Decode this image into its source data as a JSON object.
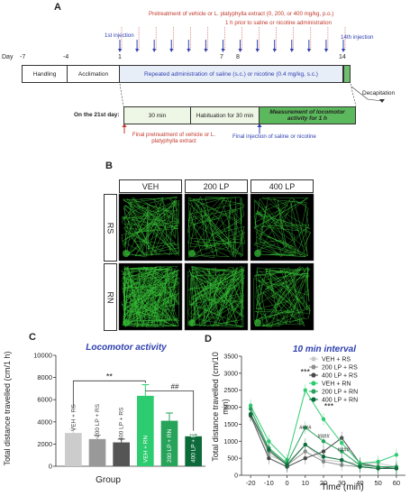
{
  "panel_a": {
    "label": "A",
    "pretreatment": "Pretreatment of vehicle or L. platyphylla extract (0, 200, or 400 mg/kg, p.o.)",
    "pretreatment_sub": "1 h prior to saline or nicotine administration",
    "first_injection": "1st injection",
    "last_injection": "14th injection",
    "day_prefix": "Day",
    "days": [
      "-7",
      "-4",
      "1",
      "7",
      "8",
      "14"
    ],
    "handling": "Handling",
    "acclimation": "Acclimation",
    "repeated": "Repeated administration of saline (s.c.) or nicotine (0.4 mg/kg, s.c.)",
    "decapitation": "Decapitation",
    "day21": "On the 21st day:",
    "box_30min": "30 min",
    "box_habituation": "Habituation  for 30 min",
    "box_measurement": "Measurement of locomotor activity for 1 h",
    "final_pretreat": "Final pretreatment of vehicle or L. platyphylla extract",
    "final_injection": "Final injection of saline or nicotine"
  },
  "panel_b": {
    "label": "B",
    "columns": [
      "VEH",
      "200 LP",
      "400 LP"
    ],
    "rows": [
      "RS",
      "RN"
    ]
  },
  "panel_c": {
    "label": "C",
    "title": "Locomotor activity",
    "ylabel": "Total distance travelled (cm/1 h)",
    "xlabel": "Group",
    "sig1": "**",
    "sig2": "##"
  },
  "panel_d": {
    "label": "D",
    "title": "10 min interval",
    "ylabel": "Total distance travelled (cm/10 min)",
    "xlabel": "Time (min)",
    "stars1": "***",
    "stars2": "***",
    "hash": "####"
  },
  "chart_data": [
    {
      "type": "bar",
      "title": "Locomotor activity",
      "xlabel": "Group",
      "ylabel": "Total distance travelled (cm/1 h)",
      "ylim": [
        0,
        10000
      ],
      "yticks": [
        0,
        2000,
        4000,
        6000,
        8000,
        10000
      ],
      "categories": [
        "VEH + RS",
        "200 LP + RS",
        "400 LP + RS",
        "VEH + RN",
        "200 LP + RN",
        "400 LP + RN"
      ],
      "values": [
        3000,
        2450,
        2150,
        6350,
        4100,
        2700
      ],
      "errors": [
        350,
        350,
        300,
        1000,
        700,
        150
      ],
      "colors": [
        "#cccccc",
        "#999999",
        "#555555",
        "#2ecc71",
        "#27a35a",
        "#0d6b3b"
      ]
    },
    {
      "type": "line",
      "title": "10 min interval",
      "xlabel": "Time (min)",
      "ylabel": "Total distance travelled (cm/10 min)",
      "xlim": [
        -25,
        65
      ],
      "ylim": [
        0,
        3500
      ],
      "xticks": [
        -20,
        -10,
        0,
        10,
        20,
        30,
        40,
        50,
        60
      ],
      "yticks": [
        0,
        500,
        1000,
        1500,
        2000,
        2500,
        3000,
        3500
      ],
      "x": [
        -20,
        -10,
        0,
        10,
        20,
        30,
        40,
        50,
        60
      ],
      "series": [
        {
          "name": "VEH + RS",
          "color": "#c8c8c8",
          "values": [
            2000,
            600,
            350,
            900,
            450,
            400,
            350,
            350,
            250
          ]
        },
        {
          "name": "200 LP + RS",
          "color": "#909090",
          "values": [
            1800,
            700,
            300,
            700,
            400,
            300,
            250,
            200,
            200
          ]
        },
        {
          "name": "400 LP + RS",
          "color": "#4a4a4a",
          "values": [
            1750,
            500,
            250,
            500,
            700,
            1100,
            350,
            250,
            200
          ]
        },
        {
          "name": "VEH + RN",
          "color": "#2ecc71",
          "values": [
            2050,
            1000,
            450,
            2500,
            1650,
            950,
            350,
            400,
            600
          ]
        },
        {
          "name": "200 LP + RN",
          "color": "#27a35a",
          "values": [
            1950,
            800,
            350,
            1400,
            1000,
            700,
            300,
            250,
            250
          ]
        },
        {
          "name": "400 LP + RN",
          "color": "#0d6b3b",
          "values": [
            1800,
            750,
            300,
            900,
            550,
            450,
            250,
            200,
            200
          ]
        }
      ]
    }
  ]
}
